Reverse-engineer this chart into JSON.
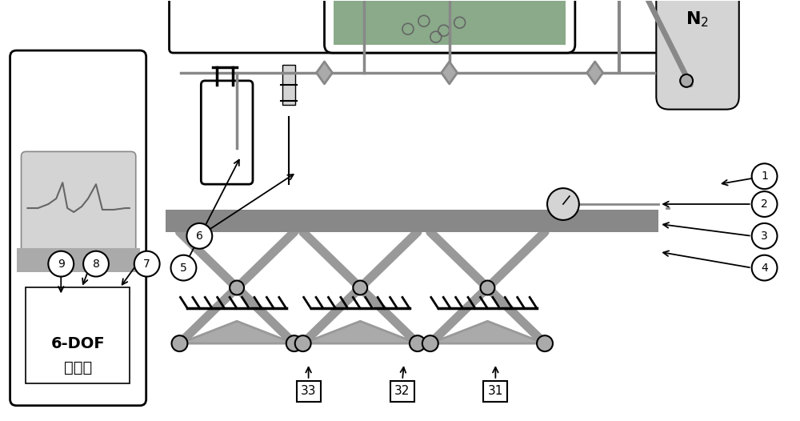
{
  "bg_color": "#ffffff",
  "c_light": "#d4d4d4",
  "c_med": "#aaaaaa",
  "c_dark": "#888888",
  "c_leg": "#999999",
  "c_plat": "#888888",
  "c_tank_fill": "#8aaa8a",
  "c_black": "#000000",
  "c_white": "#ffffff"
}
